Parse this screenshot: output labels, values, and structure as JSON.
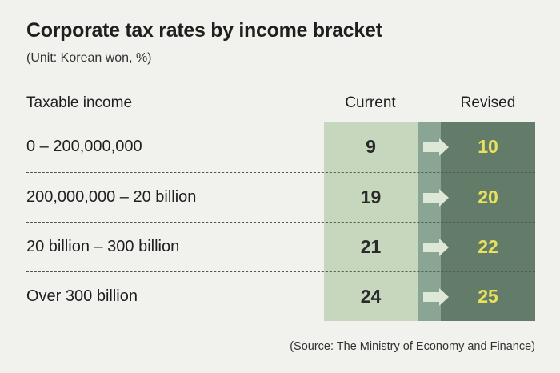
{
  "chart_data": {
    "type": "table",
    "title": "Corporate tax rates by income bracket",
    "subtitle": "(Unit: Korean won, %)",
    "columns": [
      "Taxable income",
      "Current",
      "Revised"
    ],
    "rows": [
      {
        "income": "0 – 200,000,000",
        "current": "9",
        "revised": "10"
      },
      {
        "income": "200,000,000 – 20 billion",
        "current": "19",
        "revised": "20"
      },
      {
        "income": "20 billion – 300 billion",
        "current": "21",
        "revised": "22"
      },
      {
        "income": "Over 300 billion",
        "current": "24",
        "revised": "25"
      }
    ],
    "source": "(Source: The Ministry of Economy and Finance)"
  },
  "colors": {
    "background": "#f1f2ee",
    "current_column": "#c6d7bd",
    "gap_column": "#8aa593",
    "revised_column": "#637c6a",
    "revised_text": "#e9e15b",
    "arrow": "#dde8d6"
  }
}
